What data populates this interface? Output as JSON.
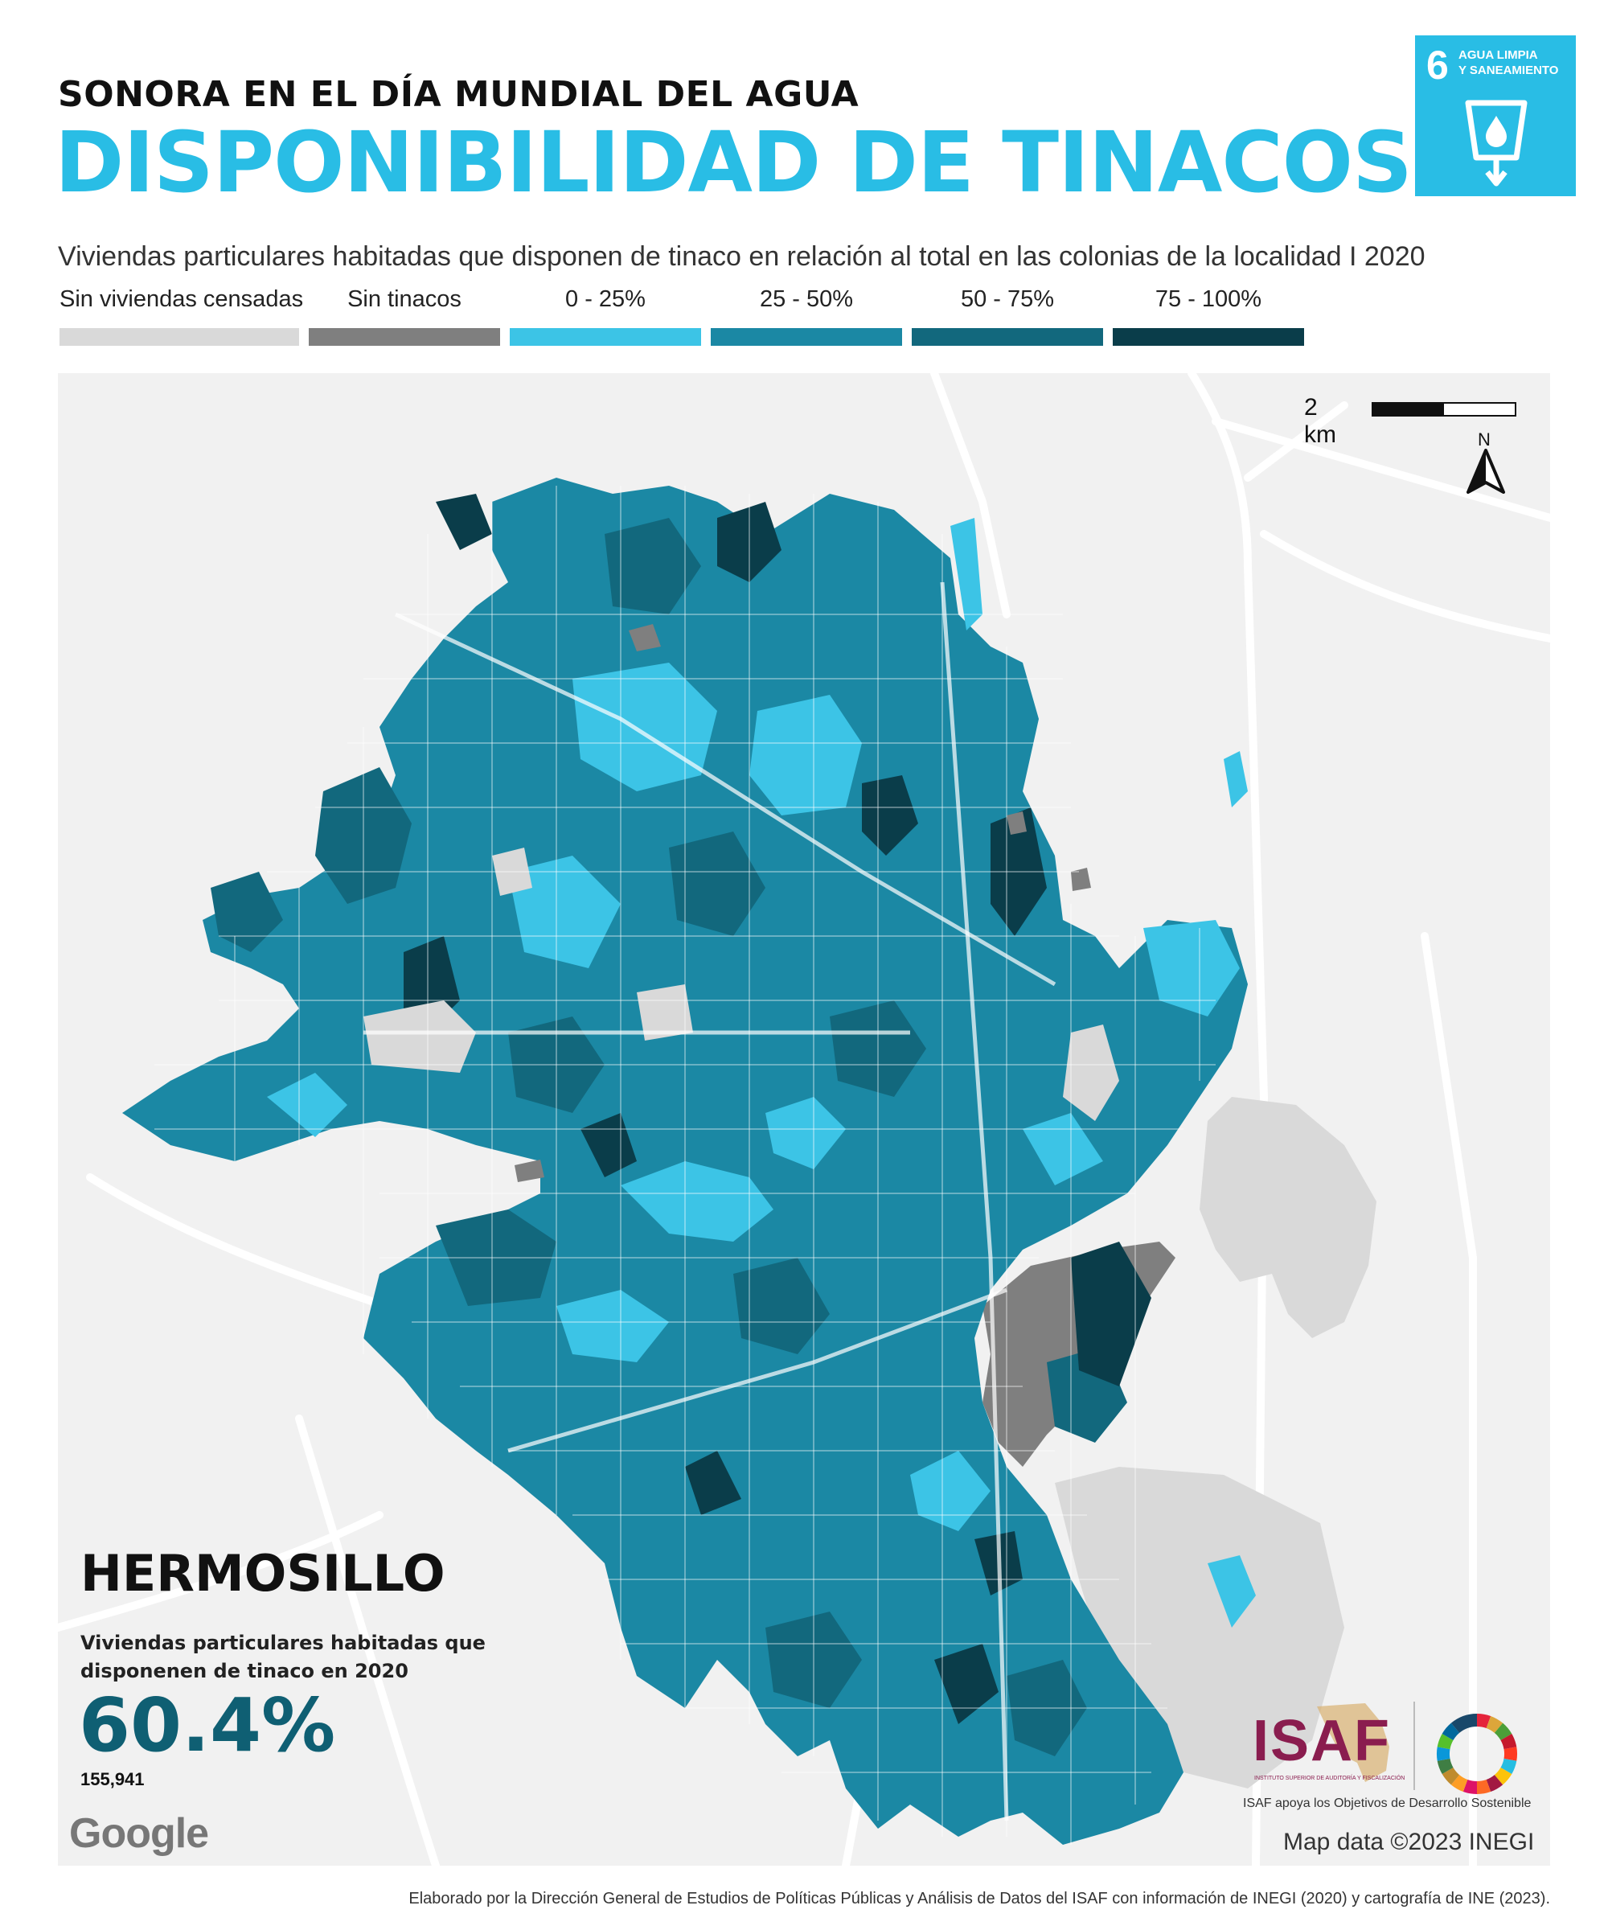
{
  "header": {
    "supertitle": "SONORA EN EL DÍA MUNDIAL DEL AGUA",
    "title": "DISPONIBILIDAD DE TINACOS",
    "subtitle": "Viviendas particulares habitadas que disponen de tinaco en relación al total en las colonias de la localidad I 2020"
  },
  "sdg_badge": {
    "number": "6",
    "label": "AGUA LIMPIA\nY SANEAMIENTO",
    "color": "#29bde5",
    "icon": "water-glass-icon"
  },
  "legend": [
    {
      "label": "Sin viviendas censadas",
      "color": "#d9d9d9"
    },
    {
      "label": "Sin tinacos",
      "color": "#7f7f7f"
    },
    {
      "label": "0 - 25%",
      "color": "#3cc4e6"
    },
    {
      "label": "25 - 50%",
      "color": "#1b88a4"
    },
    {
      "label": "50 - 75%",
      "color": "#12687d"
    },
    {
      "label": "75 - 100%",
      "color": "#0a3d4a"
    }
  ],
  "map": {
    "scale_label": "2 km",
    "north_label": "N",
    "city": "HERMOSILLO",
    "kpi_label": "Viviendas particulares habitadas que disponenen de tinaco en 2020",
    "kpi_value": "60.4%",
    "kpi_count": "155,941",
    "basemap_credit": "Google",
    "map_data_credit": "Map data ©2023 INEGI"
  },
  "logos": {
    "isaf_text": "ISAF",
    "isaf_subtext": "INSTITUTO SUPERIOR DE AUDITORÍA Y FISCALIZACIÓN",
    "isaf_tagline": "ISAF apoya los Objetivos de Desarrollo Sostenible",
    "isaf_color": "#8a1d4f"
  },
  "footer": "Elaborado por la Dirección General de Estudios de Políticas Públicas y Análisis de Datos del ISAF con información de INEGI (2020) y cartografía de INE (2023)."
}
